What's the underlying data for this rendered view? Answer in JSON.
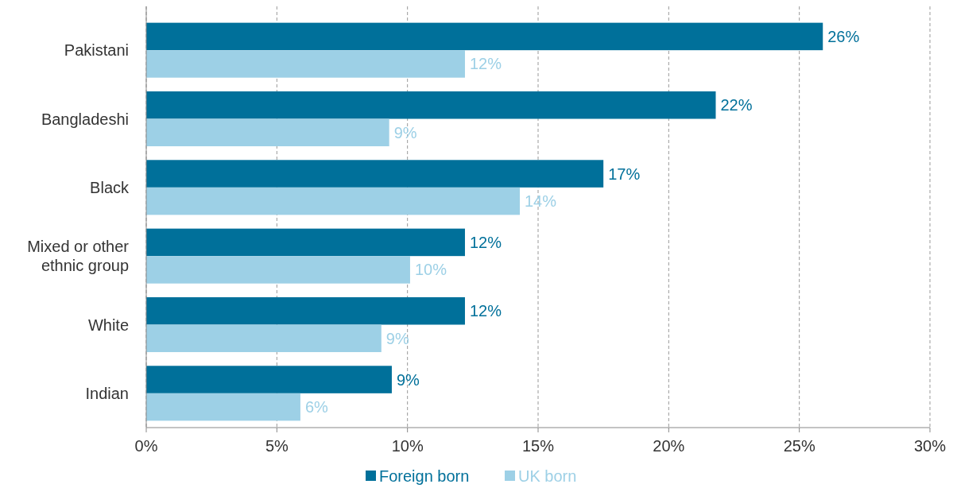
{
  "chart_data": {
    "type": "bar",
    "orientation": "horizontal",
    "categories": [
      "Pakistani",
      "Bangladeshi",
      "Black",
      "Mixed or other ethnic group",
      "White",
      "Indian"
    ],
    "series": [
      {
        "name": "Foreign born",
        "color": "#00709a",
        "values": [
          25.9,
          21.8,
          17.5,
          12.2,
          12.2,
          9.4
        ],
        "value_labels": [
          "26%",
          "22%",
          "17%",
          "12%",
          "12%",
          "9%"
        ]
      },
      {
        "name": "UK born",
        "color": "#9dd0e6",
        "values": [
          12.2,
          9.3,
          14.3,
          10.1,
          9.0,
          5.9
        ],
        "value_labels": [
          "12%",
          "9%",
          "14%",
          "10%",
          "9%",
          "6%"
        ]
      }
    ],
    "xlim": [
      0,
      30
    ],
    "xticks": [
      {
        "value": 0,
        "label": "0%"
      },
      {
        "value": 5,
        "label": "5%"
      },
      {
        "value": 10,
        "label": "10%"
      },
      {
        "value": 15,
        "label": "15%"
      },
      {
        "value": 20,
        "label": "20%"
      },
      {
        "value": 25,
        "label": "25%"
      },
      {
        "value": 30,
        "label": "30%"
      }
    ],
    "grid": "x",
    "legend": "bottom"
  }
}
